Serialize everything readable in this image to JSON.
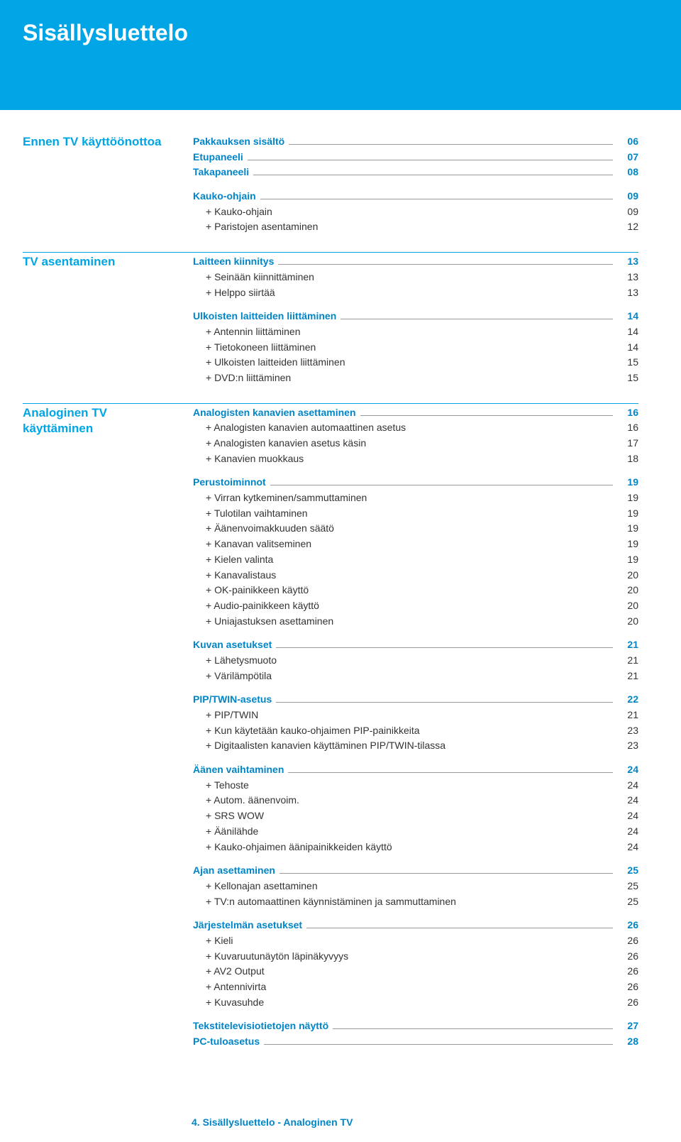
{
  "colors": {
    "header_bg": "#00a5e5",
    "header_text": "#ffffff",
    "category_text": "#00a5e5",
    "section_text": "#0085c8",
    "body_text": "#333333",
    "dash_color": "#9a9a9a",
    "rule_color": "#00a5e5",
    "page_bg": "#ffffff"
  },
  "typography": {
    "title_fontsize": 32,
    "category_fontsize": 17,
    "line_fontsize": 14,
    "font_family": "Verdana"
  },
  "title": "Sisällysluettelo",
  "footer": "4. Sisällysluettelo - Analoginen TV",
  "categories": [
    {
      "label_lines": [
        "Ennen TV käyttöönottoa"
      ],
      "groups": [
        {
          "items": [
            {
              "label": "Pakkauksen sisältö",
              "page": "06",
              "head": true,
              "dash": true
            },
            {
              "label": "Etupaneeli",
              "page": "07",
              "head": true,
              "dash": true
            },
            {
              "label": "Takapaneeli",
              "page": "08",
              "head": true,
              "dash": true
            }
          ]
        },
        {
          "items": [
            {
              "label": "Kauko-ohjain",
              "page": "09",
              "head": true,
              "dash": true
            },
            {
              "label": "+ Kauko-ohjain",
              "page": "09",
              "indent": true
            },
            {
              "label": "+ Paristojen asentaminen",
              "page": "12",
              "indent": true
            }
          ]
        }
      ]
    },
    {
      "label_lines": [
        "TV asentaminen"
      ],
      "rule_before": true,
      "groups": [
        {
          "items": [
            {
              "label": "Laitteen kiinnitys",
              "page": "13",
              "head": true,
              "dash": true
            },
            {
              "label": "+ Seinään kiinnittäminen",
              "page": "13",
              "indent": true
            },
            {
              "label": "+ Helppo siirtää",
              "page": "13",
              "indent": true
            }
          ]
        },
        {
          "items": [
            {
              "label": "Ulkoisten laitteiden liittäminen",
              "page": "14",
              "head": true,
              "dash": true
            },
            {
              "label": "+ Antennin liittäminen",
              "page": "14",
              "indent": true
            },
            {
              "label": "+ Tietokoneen liittäminen",
              "page": "14",
              "indent": true
            },
            {
              "label": "+ Ulkoisten laitteiden liittäminen",
              "page": "15",
              "indent": true
            },
            {
              "label": "+ DVD:n liittäminen",
              "page": "15",
              "indent": true
            }
          ]
        }
      ]
    },
    {
      "label_lines": [
        "Analoginen TV",
        "käyttäminen"
      ],
      "rule_before": true,
      "groups": [
        {
          "items": [
            {
              "label": "Analogisten kanavien asettaminen",
              "page": "16",
              "head": true,
              "dash": true
            },
            {
              "label": "+ Analogisten kanavien automaattinen asetus",
              "page": "16",
              "indent": true
            },
            {
              "label": "+ Analogisten kanavien asetus käsin",
              "page": "17",
              "indent": true
            },
            {
              "label": "+ Kanavien muokkaus",
              "page": "18",
              "indent": true
            }
          ]
        },
        {
          "items": [
            {
              "label": "Perustoiminnot",
              "page": "19",
              "head": true,
              "dash": true
            },
            {
              "label": "+ Virran kytkeminen/sammuttaminen",
              "page": "19",
              "indent": true
            },
            {
              "label": "+ Tulotilan vaihtaminen",
              "page": "19",
              "indent": true
            },
            {
              "label": "+ Äänenvoimakkuuden säätö",
              "page": "19",
              "indent": true
            },
            {
              "label": "+ Kanavan valitseminen",
              "page": "19",
              "indent": true
            },
            {
              "label": "+ Kielen valinta",
              "page": "19",
              "indent": true
            },
            {
              "label": "+ Kanavalistaus",
              "page": "20",
              "indent": true
            },
            {
              "label": "+ OK-painikkeen käyttö",
              "page": "20",
              "indent": true
            },
            {
              "label": "+ Audio-painikkeen käyttö",
              "page": "20",
              "indent": true
            },
            {
              "label": "+ Uniajastuksen asettaminen",
              "page": "20",
              "indent": true
            }
          ]
        },
        {
          "items": [
            {
              "label": "Kuvan asetukset",
              "page": "21",
              "head": true,
              "dash": true
            },
            {
              "label": "+ Lähetysmuoto",
              "page": "21",
              "indent": true
            },
            {
              "label": "+ Värilämpötila",
              "page": "21",
              "indent": true
            }
          ]
        },
        {
          "items": [
            {
              "label": "PIP/TWIN-asetus",
              "page": "22",
              "head": true,
              "dash": true
            },
            {
              "label": "+ PIP/TWIN",
              "page": "21",
              "indent": true
            },
            {
              "label": "+ Kun käytetään kauko-ohjaimen PIP-painikkeita",
              "page": "23",
              "indent": true
            },
            {
              "label": "+ Digitaalisten kanavien käyttäminen PIP/TWIN-tilassa",
              "page": "23",
              "indent": true
            }
          ]
        },
        {
          "items": [
            {
              "label": "Äänen vaihtaminen",
              "page": "24",
              "head": true,
              "dash": true
            },
            {
              "label": "+ Tehoste",
              "page": "24",
              "indent": true
            },
            {
              "label": "+ Autom. äänenvoim.",
              "page": "24",
              "indent": true
            },
            {
              "label": "+ SRS WOW",
              "page": "24",
              "indent": true
            },
            {
              "label": "+ Äänilähde",
              "page": "24",
              "indent": true
            },
            {
              "label": "+ Kauko-ohjaimen äänipainikkeiden käyttö",
              "page": "24",
              "indent": true
            }
          ]
        },
        {
          "items": [
            {
              "label": "Ajan asettaminen",
              "page": "25",
              "head": true,
              "dash": true
            },
            {
              "label": "+ Kellonajan asettaminen",
              "page": "25",
              "indent": true
            },
            {
              "label": "+ TV:n automaattinen käynnistäminen ja sammuttaminen",
              "page": "25",
              "indent": true
            }
          ]
        },
        {
          "items": [
            {
              "label": "Järjestelmän asetukset",
              "page": "26",
              "head": true,
              "dash": true
            },
            {
              "label": "+ Kieli",
              "page": "26",
              "indent": true
            },
            {
              "label": "+ Kuvaruutunäytön läpinäkyvyys",
              "page": "26",
              "indent": true
            },
            {
              "label": "+ AV2 Output",
              "page": "26",
              "indent": true
            },
            {
              "label": "+ Antennivirta",
              "page": "26",
              "indent": true
            },
            {
              "label": "+ Kuvasuhde",
              "page": "26",
              "indent": true
            }
          ]
        },
        {
          "items": [
            {
              "label": "Tekstitelevisiotietojen näyttö",
              "page": "27",
              "head": true,
              "dash": true
            },
            {
              "label": "PC-tuloasetus",
              "page": "28",
              "head": true,
              "dash": true
            }
          ]
        }
      ]
    }
  ]
}
